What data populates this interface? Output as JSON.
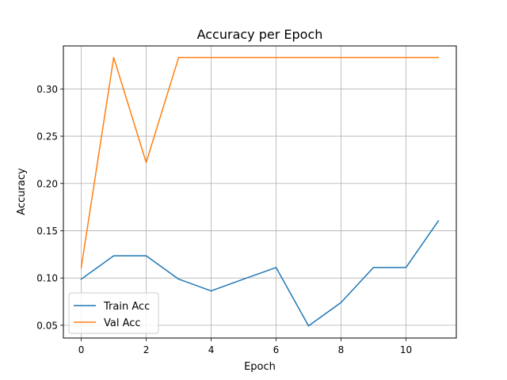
{
  "chart_data": {
    "type": "line",
    "title": "Accuracy per Epoch",
    "xlabel": "Epoch",
    "ylabel": "Accuracy",
    "xlim": [
      -0.55,
      11.55
    ],
    "ylim": [
      0.0365,
      0.3455
    ],
    "xticks": [
      0,
      2,
      4,
      6,
      8,
      10
    ],
    "yticks": [
      0.05,
      0.1,
      0.15,
      0.2,
      0.25,
      0.3
    ],
    "xtick_labels": [
      "0",
      "2",
      "4",
      "6",
      "8",
      "10"
    ],
    "ytick_labels": [
      "0.05",
      "0.10",
      "0.15",
      "0.20",
      "0.25",
      "0.30"
    ],
    "grid": true,
    "legend_position": "lower-left",
    "x": [
      0,
      1,
      2,
      3,
      4,
      5,
      6,
      7,
      8,
      9,
      10,
      11
    ],
    "series": [
      {
        "name": "Train Acc",
        "color": "#1f77b4",
        "values": [
          0.0988,
          0.1235,
          0.1235,
          0.0988,
          0.0864,
          0.0988,
          0.1111,
          0.0494,
          0.0741,
          0.1111,
          0.1111,
          0.1605
        ]
      },
      {
        "name": "Val Acc",
        "color": "#ff7f0e",
        "values": [
          0.1111,
          0.3333,
          0.2222,
          0.3333,
          0.3333,
          0.3333,
          0.3333,
          0.3333,
          0.3333,
          0.3333,
          0.3333,
          0.3333
        ]
      }
    ]
  }
}
